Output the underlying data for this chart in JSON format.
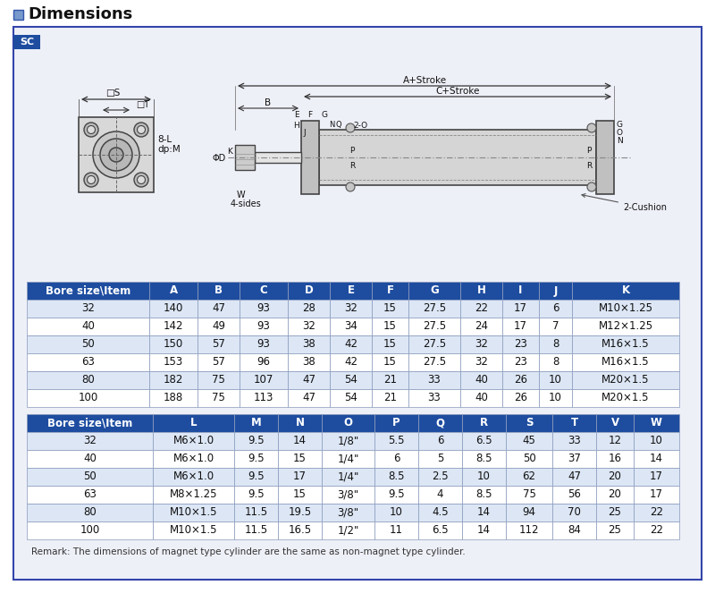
{
  "title": "Dimensions",
  "sc_label": "SC",
  "bg_color": "#ffffff",
  "outer_border_color": "#3344aa",
  "outer_border_fill": "#eef0f8",
  "header_bg": "#1e4da0",
  "header_fg": "#ffffff",
  "row_alt_color": "#dce6f5",
  "row_normal_color": "#ffffff",
  "border_color": "#8899bb",
  "table1_headers": [
    "Bore size\\Item",
    "A",
    "B",
    "C",
    "D",
    "E",
    "F",
    "G",
    "H",
    "I",
    "J",
    "K"
  ],
  "table1_rows": [
    [
      "32",
      "140",
      "47",
      "93",
      "28",
      "32",
      "15",
      "27.5",
      "22",
      "17",
      "6",
      "M10×1.25"
    ],
    [
      "40",
      "142",
      "49",
      "93",
      "32",
      "34",
      "15",
      "27.5",
      "24",
      "17",
      "7",
      "M12×1.25"
    ],
    [
      "50",
      "150",
      "57",
      "93",
      "38",
      "42",
      "15",
      "27.5",
      "32",
      "23",
      "8",
      "M16×1.5"
    ],
    [
      "63",
      "153",
      "57",
      "96",
      "38",
      "42",
      "15",
      "27.5",
      "32",
      "23",
      "8",
      "M16×1.5"
    ],
    [
      "80",
      "182",
      "75",
      "107",
      "47",
      "54",
      "21",
      "33",
      "40",
      "26",
      "10",
      "M20×1.5"
    ],
    [
      "100",
      "188",
      "75",
      "113",
      "47",
      "54",
      "21",
      "33",
      "40",
      "26",
      "10",
      "M20×1.5"
    ]
  ],
  "table2_headers": [
    "Bore size\\Item",
    "L",
    "M",
    "N",
    "O",
    "P",
    "Q",
    "R",
    "S",
    "T",
    "V",
    "W"
  ],
  "table2_rows": [
    [
      "32",
      "M6×1.0",
      "9.5",
      "14",
      "1/8\"",
      "5.5",
      "6",
      "6.5",
      "45",
      "33",
      "12",
      "10"
    ],
    [
      "40",
      "M6×1.0",
      "9.5",
      "15",
      "1/4\"",
      "6",
      "5",
      "8.5",
      "50",
      "37",
      "16",
      "14"
    ],
    [
      "50",
      "M6×1.0",
      "9.5",
      "17",
      "1/4\"",
      "8.5",
      "2.5",
      "10",
      "62",
      "47",
      "20",
      "17"
    ],
    [
      "63",
      "M8×1.25",
      "9.5",
      "15",
      "3/8\"",
      "9.5",
      "4",
      "8.5",
      "75",
      "56",
      "20",
      "17"
    ],
    [
      "80",
      "M10×1.5",
      "11.5",
      "19.5",
      "3/8\"",
      "10",
      "4.5",
      "14",
      "94",
      "70",
      "25",
      "22"
    ],
    [
      "100",
      "M10×1.5",
      "11.5",
      "16.5",
      "1/2\"",
      "11",
      "6.5",
      "14",
      "112",
      "84",
      "25",
      "22"
    ]
  ],
  "remark": "Remark: The dimensions of magnet type cylinder are the same as non-magnet type cylinder."
}
